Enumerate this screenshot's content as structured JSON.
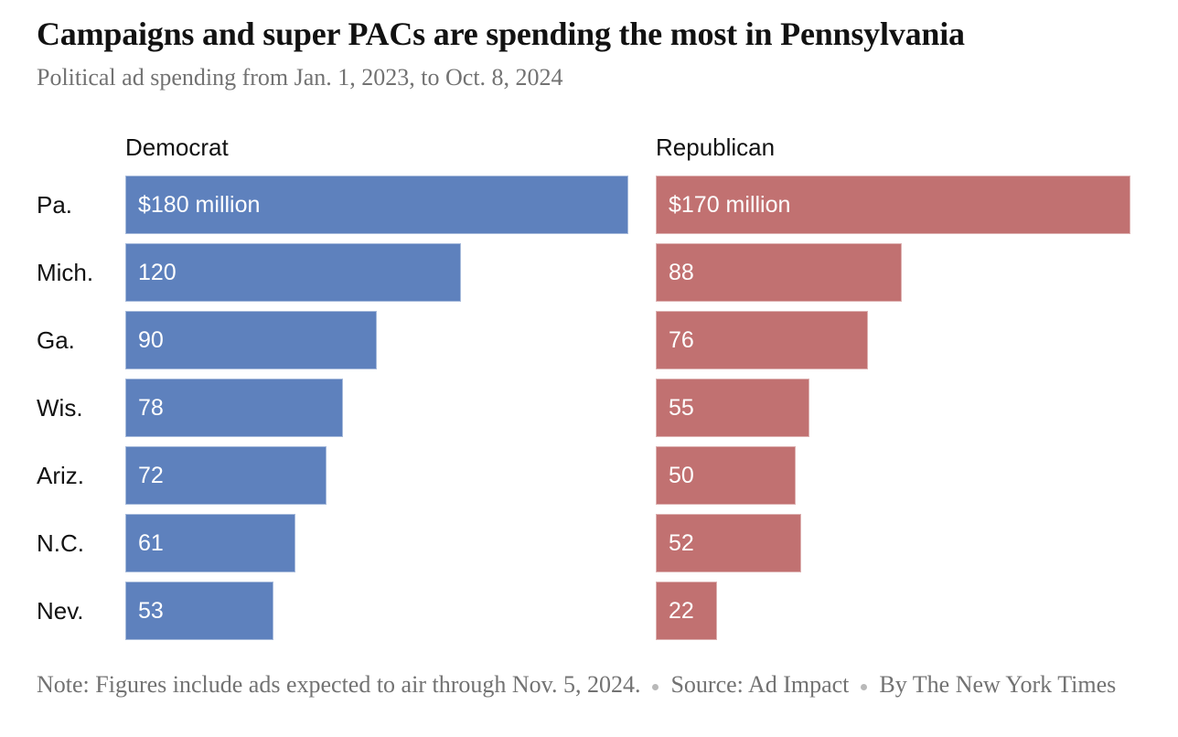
{
  "header": {
    "title": "Campaigns and super PACs are spending the most in Pennsylvania",
    "subtitle": "Political ad spending from Jan. 1, 2023, to Oct. 8, 2024"
  },
  "chart_data": {
    "type": "bar",
    "orientation": "horizontal",
    "unit": "millions of dollars",
    "categories": [
      "Pa.",
      "Mich.",
      "Ga.",
      "Wis.",
      "Ariz.",
      "N.C.",
      "Nev."
    ],
    "series": [
      {
        "name": "Democrat",
        "color": "#5e81bd",
        "values": [
          180,
          120,
          90,
          78,
          72,
          61,
          53
        ],
        "labels": [
          "$180 million",
          "120",
          "90",
          "78",
          "72",
          "61",
          "53"
        ]
      },
      {
        "name": "Republican",
        "color": "#c17171",
        "values": [
          170,
          88,
          76,
          55,
          50,
          52,
          22
        ],
        "labels": [
          "$170 million",
          "88",
          "76",
          "55",
          "50",
          "52",
          "22"
        ]
      }
    ],
    "xlim": [
      0,
      180
    ],
    "grid": false,
    "legend_position": "column-headers",
    "value_labels_inside_bars": true
  },
  "footer": {
    "note": "Note: Figures include ads expected to air through Nov. 5, 2024.",
    "source": "Source: Ad Impact",
    "byline": "By The New York Times",
    "separator_color": "#b9b9b9"
  },
  "colors": {
    "title_text": "#121212",
    "subtitle_text": "#727272",
    "bar_value_text": "#ffffff",
    "democrat_bar": "#5e81bd",
    "republican_bar": "#c17171"
  }
}
